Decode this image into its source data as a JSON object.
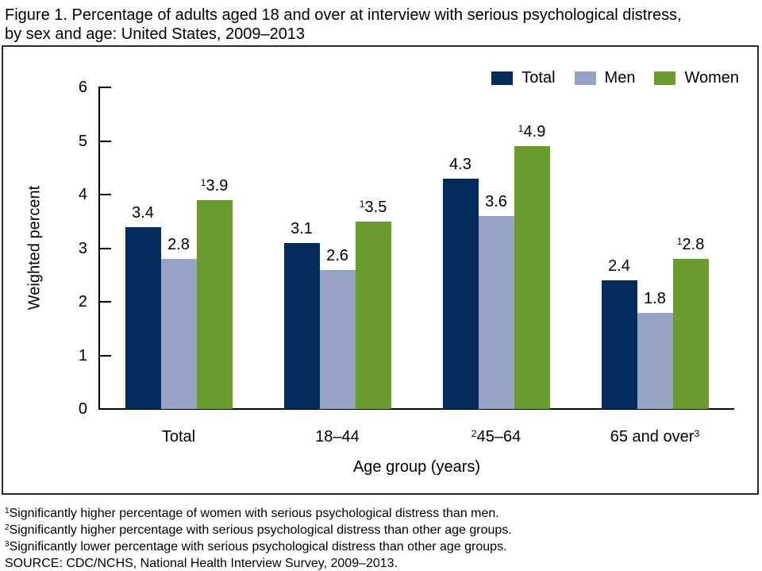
{
  "title": {
    "line1": "Figure 1. Percentage of adults aged 18 and over at interview with serious psychological distress,",
    "line2": "by sex and age: United States, 2009–2013"
  },
  "chart_data": {
    "type": "bar",
    "title": "Figure 1. Percentage of adults aged 18 and over at interview with serious psychological distress, by sex and age: United States, 2009–2013",
    "ylabel": "Weighted percent",
    "xlabel": "Age group (years)",
    "ylim": [
      0,
      6
    ],
    "yticks": [
      0,
      1,
      2,
      3,
      4,
      5,
      6
    ],
    "grid": false,
    "legend_position": "top-right",
    "value_label_decimals": 1,
    "categories": [
      {
        "pre_sup": "",
        "text": "Total",
        "post_sup": ""
      },
      {
        "pre_sup": "",
        "text": "18–44",
        "post_sup": ""
      },
      {
        "pre_sup": "2",
        "text": "45–64",
        "post_sup": ""
      },
      {
        "pre_sup": "",
        "text": "65 and over",
        "post_sup": "3"
      }
    ],
    "series": [
      {
        "name": "Total",
        "color": "#042B5C",
        "values": [
          3.4,
          3.1,
          4.3,
          2.4
        ],
        "label_sups": [
          "",
          "",
          "",
          ""
        ]
      },
      {
        "name": "Men",
        "color": "#97A3C5",
        "values": [
          2.8,
          2.6,
          3.6,
          1.8
        ],
        "label_sups": [
          "",
          "",
          "",
          ""
        ]
      },
      {
        "name": "Women",
        "color": "#6B9A31",
        "values": [
          3.9,
          3.5,
          4.9,
          2.8
        ],
        "label_sups": [
          "1",
          "1",
          "1",
          "1"
        ]
      }
    ]
  },
  "footnotes": [
    {
      "sup": "1",
      "text": "Significantly higher percentage of women with serious psychological distress than men."
    },
    {
      "sup": "2",
      "text": "Significantly higher percentage with serious psychological distress than other age groups."
    },
    {
      "sup": "3",
      "text": "Significantly lower percentage with serious psychological distress than other age groups."
    },
    {
      "sup": "",
      "text": "SOURCE: CDC/NCHS, National Health Interview Survey, 2009–2013."
    }
  ]
}
